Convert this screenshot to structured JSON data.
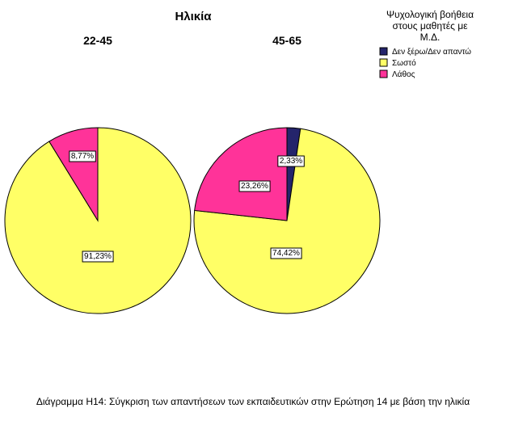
{
  "chart_data": {
    "type": "pie",
    "title": "Ηλικία",
    "panels": [
      {
        "label": "22-45",
        "slices": [
          {
            "name": "Δεν ξέρω/Δεν απαντώ",
            "value": 0,
            "label": ""
          },
          {
            "name": "Σωστό",
            "value": 91.23,
            "label": "91,23%"
          },
          {
            "name": "Λάθος",
            "value": 8.77,
            "label": "8,77%"
          }
        ]
      },
      {
        "label": "45-65",
        "slices": [
          {
            "name": "Δεν ξέρω/Δεν απαντώ",
            "value": 2.33,
            "label": "2,33%"
          },
          {
            "name": "Σωστό",
            "value": 74.42,
            "label": "74,42%"
          },
          {
            "name": "Λάθος",
            "value": 23.26,
            "label": "23,26%"
          }
        ]
      }
    ],
    "legend": {
      "title": [
        "Ψυχολογική βοήθεια",
        "στους μαθητές με",
        "Μ.Δ."
      ],
      "placement": "top-right",
      "entries": [
        {
          "label": "Δεν ξέρω/Δεν απαντώ",
          "color": "#24246b"
        },
        {
          "label": "Σωστό",
          "color": "#ffff66"
        },
        {
          "label": "Λάθος",
          "color": "#ff3399"
        }
      ]
    },
    "start_angle": "12 o'clock",
    "direction": "clockwise"
  },
  "caption": "Διάγραμμα Η14: Σύγκριση των απαντήσεων των εκπαιδευτικών στην Ερώτηση 14 με βάση την ηλικία"
}
